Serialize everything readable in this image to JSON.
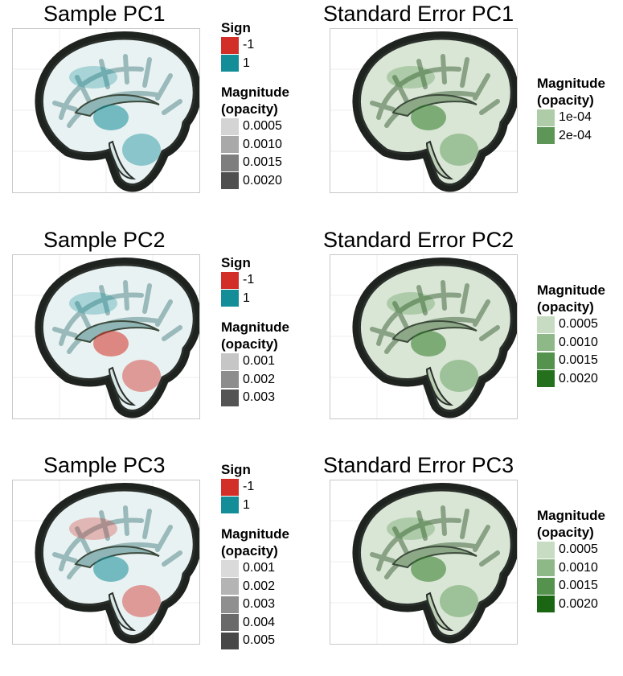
{
  "chart_data": [
    {
      "type": "heatmap",
      "title": "Sample PC1",
      "kind": "sample",
      "highlight_colors": [
        "#138d98",
        "#138d98",
        "#138d98"
      ],
      "legend": [
        {
          "title_lines": [
            "Sign"
          ],
          "entries": [
            {
              "label": "-1",
              "color": "#d12f27"
            },
            {
              "label": "1",
              "color": "#138d98"
            }
          ]
        },
        {
          "title_lines": [
            "Magnitude",
            "(opacity)"
          ],
          "entries": [
            {
              "label": "0.0005",
              "color": "#d4d4d4"
            },
            {
              "label": "0.0010",
              "color": "#a9a9a9"
            },
            {
              "label": "0.0015",
              "color": "#7e7e7e"
            },
            {
              "label": "0.0020",
              "color": "#4f4f4f"
            }
          ]
        }
      ]
    },
    {
      "type": "heatmap",
      "title": "Standard Error PC1",
      "kind": "se",
      "legend": [
        {
          "title_lines": [
            "Magnitude",
            "(opacity)"
          ],
          "entries": [
            {
              "label": "1e-04",
              "color": "#aecca7"
            },
            {
              "label": "2e-04",
              "color": "#5d9656"
            }
          ]
        }
      ]
    },
    {
      "type": "heatmap",
      "title": "Sample PC2",
      "kind": "sample",
      "highlight_colors": [
        "#d12f27",
        "#d12f27",
        "#138d98"
      ],
      "legend": [
        {
          "title_lines": [
            "Sign"
          ],
          "entries": [
            {
              "label": "-1",
              "color": "#d12f27"
            },
            {
              "label": "1",
              "color": "#138d98"
            }
          ]
        },
        {
          "title_lines": [
            "Magnitude",
            "(opacity)"
          ],
          "entries": [
            {
              "label": "0.001",
              "color": "#c6c6c6"
            },
            {
              "label": "0.002",
              "color": "#8d8d8d"
            },
            {
              "label": "0.003",
              "color": "#545454"
            }
          ]
        }
      ]
    },
    {
      "type": "heatmap",
      "title": "Standard Error PC2",
      "kind": "se",
      "legend": [
        {
          "title_lines": [
            "Magnitude",
            "(opacity)"
          ],
          "entries": [
            {
              "label": "0.0005",
              "color": "#c8dcc3"
            },
            {
              "label": "0.0010",
              "color": "#8fb889"
            },
            {
              "label": "0.0015",
              "color": "#54924d"
            },
            {
              "label": "0.0020",
              "color": "#24701c"
            }
          ]
        }
      ]
    },
    {
      "type": "heatmap",
      "title": "Sample PC3",
      "kind": "sample",
      "highlight_colors": [
        "#138d98",
        "#d12f27",
        "#d12f27"
      ],
      "legend": [
        {
          "title_lines": [
            "Sign"
          ],
          "entries": [
            {
              "label": "-1",
              "color": "#d12f27"
            },
            {
              "label": "1",
              "color": "#138d98"
            }
          ]
        },
        {
          "title_lines": [
            "Magnitude",
            "(opacity)"
          ],
          "entries": [
            {
              "label": "0.001",
              "color": "#dadada"
            },
            {
              "label": "0.002",
              "color": "#b4b4b4"
            },
            {
              "label": "0.003",
              "color": "#8f8f8f"
            },
            {
              "label": "0.004",
              "color": "#6a6a6a"
            },
            {
              "label": "0.005",
              "color": "#484848"
            }
          ]
        }
      ]
    },
    {
      "type": "heatmap",
      "title": "Standard Error PC3",
      "kind": "se",
      "legend": [
        {
          "title_lines": [
            "Magnitude",
            "(opacity)"
          ],
          "entries": [
            {
              "label": "0.0005",
              "color": "#c8dcc3"
            },
            {
              "label": "0.0010",
              "color": "#8fb889"
            },
            {
              "label": "0.0015",
              "color": "#54924d"
            },
            {
              "label": "0.0020",
              "color": "#1a6612"
            }
          ]
        }
      ]
    }
  ]
}
